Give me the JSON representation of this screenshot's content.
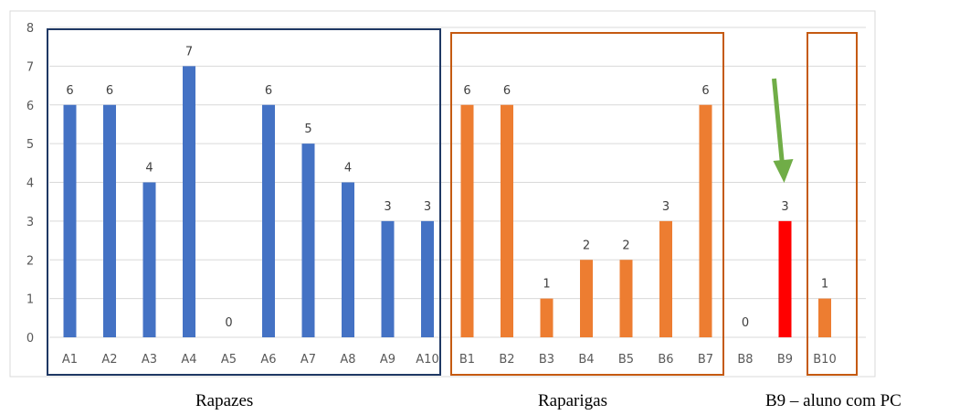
{
  "chart_data": {
    "type": "bar",
    "categories": [
      "A1",
      "A2",
      "A3",
      "A4",
      "A5",
      "A6",
      "A7",
      "A8",
      "A9",
      "A10",
      "B1",
      "B2",
      "B3",
      "B4",
      "B5",
      "B6",
      "B7",
      "B8",
      "B9",
      "B10"
    ],
    "values": [
      6,
      6,
      4,
      7,
      0,
      6,
      5,
      4,
      3,
      3,
      6,
      6,
      1,
      2,
      2,
      3,
      6,
      0,
      3,
      1
    ],
    "bar_colors": [
      "#4472C4",
      "#4472C4",
      "#4472C4",
      "#4472C4",
      "#4472C4",
      "#4472C4",
      "#4472C4",
      "#4472C4",
      "#4472C4",
      "#4472C4",
      "#ED7D31",
      "#ED7D31",
      "#ED7D31",
      "#ED7D31",
      "#ED7D31",
      "#ED7D31",
      "#ED7D31",
      "#ED7D31",
      "#FF0000",
      "#ED7D31"
    ],
    "ylim": [
      0,
      8
    ],
    "yticks": [
      0,
      1,
      2,
      3,
      4,
      5,
      6,
      7,
      8
    ],
    "grid": true,
    "data_labels": true,
    "highlight": {
      "category": "B9",
      "marker": "green-arrow",
      "color": "#70AD47"
    }
  },
  "groups": {
    "rapazes": {
      "label": "Rapazes",
      "box_color": "#1F3864"
    },
    "raparigas": {
      "label": "Raparigas",
      "box_color": "#C55A11"
    },
    "b10_box_color": "#C55A11"
  },
  "captions": {
    "rapazes": "Rapazes",
    "raparigas": "Raparigas",
    "note": "B9 – aluno com PC"
  }
}
